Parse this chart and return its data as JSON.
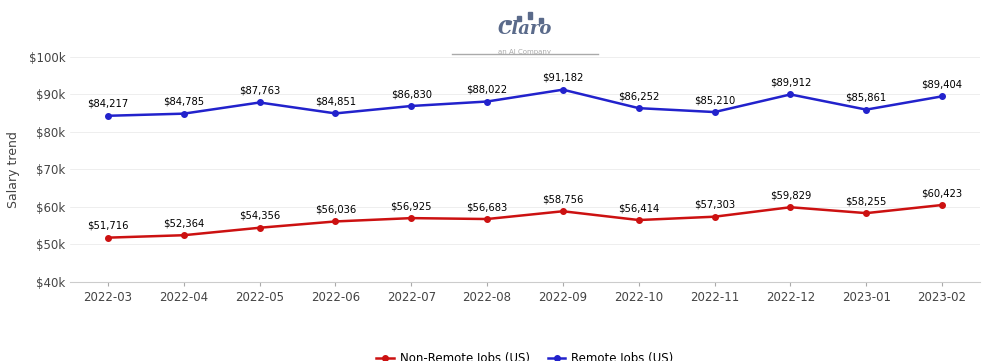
{
  "x_labels": [
    "2022-03",
    "2022-04",
    "2022-05",
    "2022-06",
    "2022-07",
    "2022-08",
    "2022-09",
    "2022-10",
    "2022-11",
    "2022-12",
    "2023-01",
    "2023-02"
  ],
  "remote_values": [
    84217,
    84785,
    87763,
    84851,
    86830,
    88022,
    91182,
    86252,
    85210,
    89912,
    85861,
    89404
  ],
  "nonremote_values": [
    51716,
    52364,
    54356,
    56036,
    56925,
    56683,
    58756,
    56414,
    57303,
    59829,
    58255,
    60423
  ],
  "remote_labels": [
    "$84,217",
    "$84,785",
    "$87,763",
    "$84,851",
    "$86,830",
    "$88,022",
    "$91,182",
    "$86,252",
    "$85,210",
    "$89,912",
    "$85,861",
    "$89,404"
  ],
  "nonremote_labels": [
    "$51,716",
    "$52,364",
    "$54,356",
    "$56,036",
    "$56,925",
    "$56,683",
    "$58,756",
    "$56,414",
    "$57,303",
    "$59,829",
    "$58,255",
    "$60,423"
  ],
  "remote_color": "#2222cc",
  "nonremote_color": "#cc1111",
  "ylabel": "Salary trend",
  "ylim_min": 40000,
  "ylim_max": 100000,
  "yticks": [
    40000,
    50000,
    60000,
    70000,
    80000,
    90000,
    100000
  ],
  "ytick_labels": [
    "$40k",
    "$50k",
    "$60k",
    "$70k",
    "$80k",
    "$90k",
    "$100k"
  ],
  "legend_nonremote": "Non-Remote Jobs (US)",
  "legend_remote": "Remote Jobs (US)",
  "background_color": "#ffffff",
  "marker_size": 4,
  "line_width": 1.8,
  "label_fontsize": 7.2,
  "axis_fontsize": 8.5,
  "legend_fontsize": 8.5,
  "ylabel_fontsize": 9,
  "claro_text": "Claro",
  "claro_subtitle": "an AI Company",
  "logo_color": "#5a6a8a"
}
